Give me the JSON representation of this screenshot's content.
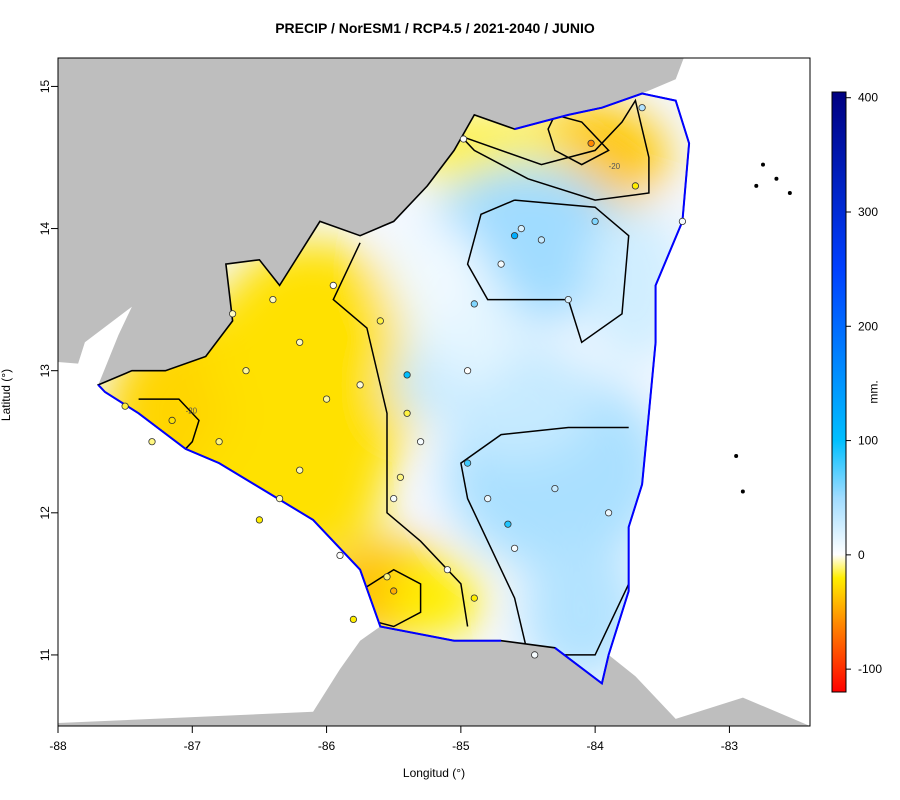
{
  "title": "PRECIP / NorESM1 / RCP4.5 / 2021-2040 / JUNIO",
  "xlabel": "Longitud (°)",
  "ylabel": "Latitud (°)",
  "colorbar": {
    "units": "mm.",
    "ticks": [
      -100,
      0,
      100,
      200,
      300,
      400
    ],
    "range": [
      -120,
      405
    ],
    "colors": [
      "#ff0000",
      "#ffee00",
      "#ffffff",
      "#00bfff",
      "#0000ff",
      "#000080"
    ]
  },
  "map": {
    "x_ticks": [
      -88,
      -87,
      -86,
      -85,
      -84,
      -83
    ],
    "y_ticks": [
      11,
      12,
      13,
      14,
      15
    ],
    "xlim": [
      -88,
      -82.4
    ],
    "ylim": [
      10.5,
      15.2
    ],
    "land_neighbor_color": "#bebebe",
    "coast_color": "#0000ff",
    "contour_label": "-20"
  },
  "chart_data": {
    "type": "map",
    "title": "PRECIP / NorESM1 / RCP4.5 / 2021-2040 / JUNIO",
    "xlabel": "Longitud (°)",
    "ylabel": "Latitud (°)",
    "contour_levels": [
      -20,
      20
    ],
    "stations": [
      {
        "lon": -84.03,
        "lat": 14.6,
        "value": -60
      },
      {
        "lon": -85.5,
        "lat": 11.45,
        "value": -45
      },
      {
        "lon": -87.15,
        "lat": 12.65,
        "value": -25
      },
      {
        "lon": -83.7,
        "lat": 14.3,
        "value": -20
      },
      {
        "lon": -85.55,
        "lat": 11.55,
        "value": -10
      },
      {
        "lon": -84.9,
        "lat": 11.4,
        "value": -20
      },
      {
        "lon": -85.8,
        "lat": 11.25,
        "value": -20
      },
      {
        "lon": -86.5,
        "lat": 11.95,
        "value": -20
      },
      {
        "lon": -87.5,
        "lat": 12.75,
        "value": -15
      },
      {
        "lon": -85.6,
        "lat": 13.35,
        "value": -15
      },
      {
        "lon": -85.4,
        "lat": 12.7,
        "value": -15
      },
      {
        "lon": -85.45,
        "lat": 12.25,
        "value": -10
      },
      {
        "lon": -84.55,
        "lat": 14.0,
        "value": 20
      },
      {
        "lon": -84.6,
        "lat": 13.95,
        "value": 120
      },
      {
        "lon": -84.4,
        "lat": 13.92,
        "value": 30
      },
      {
        "lon": -84.0,
        "lat": 14.05,
        "value": 60
      },
      {
        "lon": -84.9,
        "lat": 13.47,
        "value": 60
      },
      {
        "lon": -85.4,
        "lat": 12.97,
        "value": 100
      },
      {
        "lon": -84.95,
        "lat": 12.35,
        "value": 80
      },
      {
        "lon": -84.65,
        "lat": 11.92,
        "value": 90
      },
      {
        "lon": -84.3,
        "lat": 12.17,
        "value": 30
      },
      {
        "lon": -83.65,
        "lat": 14.85,
        "value": 40
      },
      {
        "lon": -84.2,
        "lat": 13.5,
        "value": 20
      },
      {
        "lon": -85.5,
        "lat": 12.1,
        "value": 5
      },
      {
        "lon": -86.0,
        "lat": 12.8,
        "value": -8
      },
      {
        "lon": -86.2,
        "lat": 13.2,
        "value": -5
      },
      {
        "lon": -86.4,
        "lat": 13.5,
        "value": -5
      },
      {
        "lon": -86.6,
        "lat": 13.0,
        "value": -8
      },
      {
        "lon": -86.8,
        "lat": 12.5,
        "value": -10
      },
      {
        "lon": -86.2,
        "lat": 12.3,
        "value": -6
      },
      {
        "lon": -85.9,
        "lat": 11.7,
        "value": 0
      },
      {
        "lon": -85.1,
        "lat": 11.6,
        "value": 2
      },
      {
        "lon": -84.6,
        "lat": 11.75,
        "value": 5
      },
      {
        "lon": -84.45,
        "lat": 11.0,
        "value": 5
      },
      {
        "lon": -84.7,
        "lat": 13.75,
        "value": 5
      },
      {
        "lon": -85.95,
        "lat": 13.6,
        "value": 0
      },
      {
        "lon": -84.95,
        "lat": 13.0,
        "value": 0
      },
      {
        "lon": -85.3,
        "lat": 12.5,
        "value": 5
      },
      {
        "lon": -84.8,
        "lat": 12.1,
        "value": 10
      },
      {
        "lon": -83.9,
        "lat": 12.0,
        "value": 10
      },
      {
        "lon": -83.35,
        "lat": 14.05,
        "value": 5
      },
      {
        "lon": -84.98,
        "lat": 14.63,
        "value": 0
      },
      {
        "lon": -86.7,
        "lat": 13.4,
        "value": -5
      },
      {
        "lon": -87.3,
        "lat": 12.5,
        "value": -10
      },
      {
        "lon": -86.35,
        "lat": 12.1,
        "value": -5
      },
      {
        "lon": -85.75,
        "lat": 12.9,
        "value": -3
      }
    ]
  }
}
